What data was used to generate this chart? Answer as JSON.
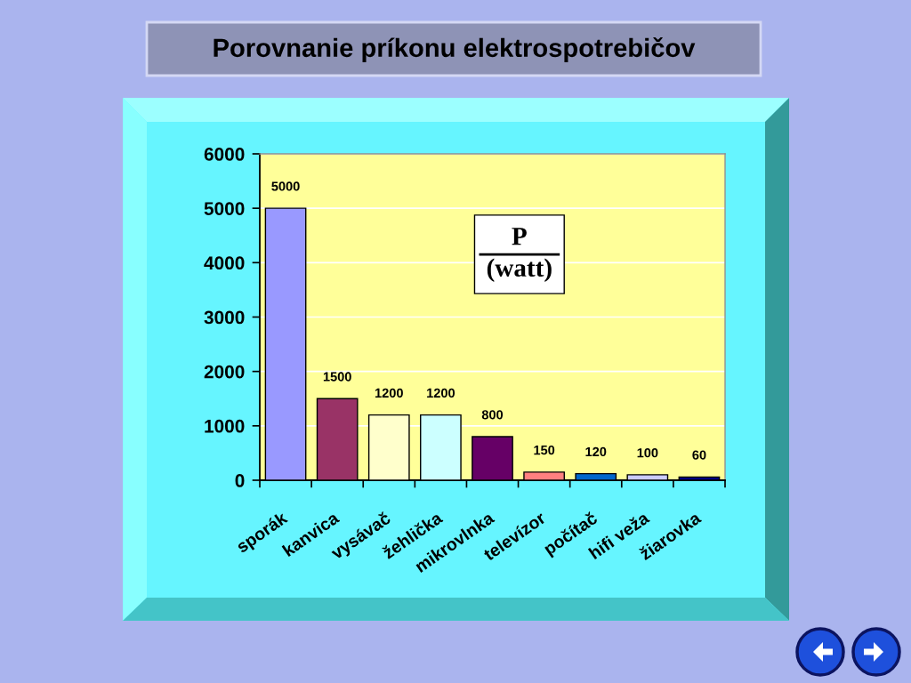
{
  "chart_data": {
    "type": "bar",
    "title": "Porovnanie príkonu elektrospotrebičov",
    "ylabel": "P\n(watt)",
    "categories": [
      "sporák",
      "kanvica",
      "vysávač",
      "žehlička",
      "mikrovlnka",
      "televízor",
      "počítač",
      "hifi veža",
      "žiarovka"
    ],
    "values": [
      5000,
      1500,
      1200,
      1200,
      800,
      150,
      120,
      100,
      60
    ],
    "colors": [
      "#9999ff",
      "#993366",
      "#ffffcc",
      "#ccffff",
      "#660066",
      "#ff8080",
      "#0066cc",
      "#ccccff",
      "#000080"
    ],
    "ylim": [
      0,
      6000
    ],
    "yticks": [
      0,
      1000,
      2000,
      3000,
      4000,
      5000,
      6000
    ],
    "grid": "y",
    "data_labels": true
  }
}
